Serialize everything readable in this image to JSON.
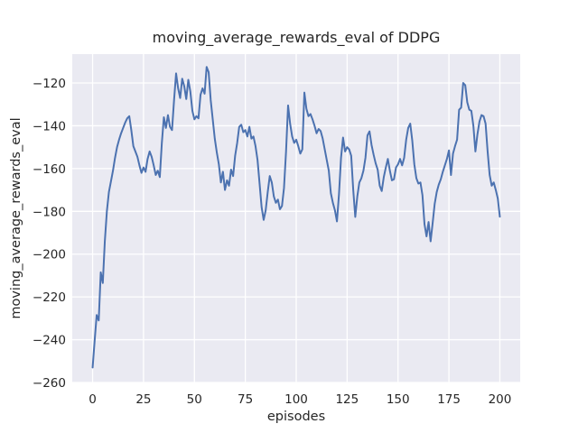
{
  "figure": {
    "title": "moving_average_rewards_eval of DDPG",
    "xlabel": "episodes",
    "ylabel": "moving_average_rewards_eval"
  },
  "colors": {
    "figure_background": "#ffffff",
    "axes_background": "#eaeaf2",
    "grid": "#ffffff",
    "line": "#4c72b0",
    "text": "#262626"
  },
  "chart_data": {
    "type": "line",
    "title": "moving_average_rewards_eval of DDPG",
    "xlabel": "episodes",
    "ylabel": "moving_average_rewards_eval",
    "legend_position": "none",
    "grid": true,
    "xlim": [
      -10,
      210
    ],
    "ylim": [
      -260,
      -106.5
    ],
    "xticks": [
      0,
      25,
      50,
      75,
      100,
      125,
      150,
      175,
      200
    ],
    "yticks": [
      -120,
      -140,
      -160,
      -180,
      -200,
      -220,
      -240,
      -260
    ],
    "x_start": 0,
    "x_step": 1,
    "series": [
      {
        "name": "moving_average_rewards_eval",
        "color": "#4c72b0",
        "values": [
          -253,
          -240.5,
          -228.5,
          -231,
          -208.5,
          -213.5,
          -194,
          -180,
          -171,
          -166,
          -161,
          -155,
          -150,
          -146.5,
          -143.5,
          -141,
          -138.5,
          -136.5,
          -135.5,
          -142,
          -149.5,
          -152,
          -154.5,
          -158.5,
          -162,
          -159.5,
          -161.5,
          -155.5,
          -152,
          -154.5,
          -158.5,
          -163,
          -161,
          -164,
          -148,
          -136,
          -141,
          -135,
          -140.5,
          -142,
          -128,
          -115.5,
          -122.5,
          -127,
          -118,
          -121.5,
          -127.5,
          -118.5,
          -124,
          -133,
          -137,
          -135.5,
          -136.5,
          -125.5,
          -122.5,
          -125,
          -112.5,
          -115,
          -128,
          -137,
          -146,
          -152.5,
          -158,
          -166.5,
          -161.5,
          -170,
          -165.5,
          -168,
          -160.5,
          -163.5,
          -154,
          -148,
          -140.5,
          -139.5,
          -143,
          -142,
          -145,
          -140.5,
          -146,
          -145,
          -149.5,
          -156,
          -167,
          -178,
          -184,
          -179.5,
          -171,
          -163.5,
          -166.5,
          -173,
          -176,
          -174.5,
          -179,
          -177.5,
          -169,
          -152,
          -130.5,
          -139,
          -145,
          -148,
          -146.5,
          -149.5,
          -153,
          -151,
          -124.5,
          -132,
          -135.5,
          -134.5,
          -137,
          -140,
          -143.5,
          -141.5,
          -142.5,
          -146,
          -151,
          -156,
          -161,
          -171.5,
          -176,
          -179.5,
          -184.7,
          -172,
          -155,
          -145.5,
          -152,
          -150,
          -151,
          -154,
          -170,
          -182.6,
          -173,
          -166.5,
          -164.5,
          -161,
          -155,
          -144.5,
          -142.6,
          -149,
          -153.5,
          -157.5,
          -160.5,
          -168,
          -170.5,
          -164,
          -159.5,
          -155.5,
          -161,
          -165.5,
          -165,
          -159.5,
          -158,
          -155.5,
          -158.5,
          -155,
          -146.5,
          -141,
          -139,
          -147,
          -158,
          -164.5,
          -167,
          -166.5,
          -172.5,
          -186,
          -191.7,
          -185,
          -194,
          -185.5,
          -176.5,
          -171,
          -167.5,
          -165,
          -161.5,
          -158.5,
          -155.5,
          -151.5,
          -163,
          -153,
          -149.5,
          -146.5,
          -132.5,
          -131.5,
          -120,
          -121,
          -129,
          -132.5,
          -133,
          -140,
          -152,
          -144,
          -138,
          -135,
          -135.5,
          -139,
          -152,
          -163,
          -168,
          -166.5,
          -170,
          -174,
          -182.5
        ]
      }
    ]
  }
}
